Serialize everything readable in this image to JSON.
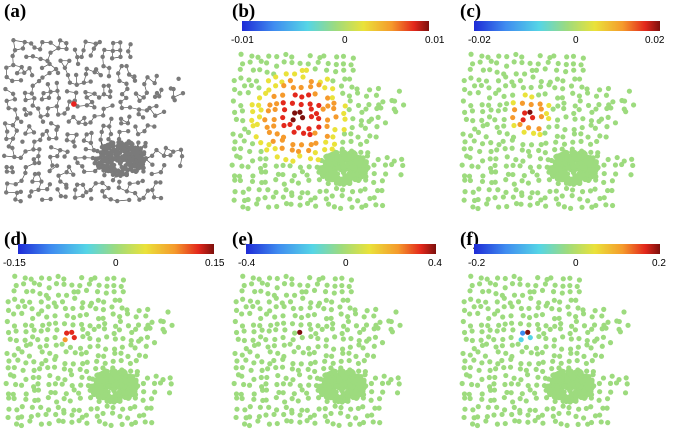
{
  "figure": {
    "panels": [
      {
        "id": "a",
        "label": "(a)",
        "kind": "graph",
        "colorbar": null
      },
      {
        "id": "b",
        "label": "(b)",
        "kind": "heat",
        "colorbar": {
          "ticks": [
            "-0.01",
            "0",
            "0.01"
          ]
        }
      },
      {
        "id": "c",
        "label": "(c)",
        "kind": "heat",
        "colorbar": {
          "ticks": [
            "-0.02",
            "0",
            "0.02"
          ]
        }
      },
      {
        "id": "d",
        "label": "(d)",
        "kind": "heat",
        "colorbar": {
          "ticks": [
            "-0.15",
            "0",
            "0.15"
          ]
        }
      },
      {
        "id": "e",
        "label": "(e)",
        "kind": "heat",
        "colorbar": {
          "ticks": [
            "-0.4",
            "0",
            "0.4"
          ]
        }
      },
      {
        "id": "f",
        "label": "(f)",
        "kind": "heat",
        "colorbar": {
          "ticks": [
            "-0.2",
            "0",
            "0.2"
          ]
        }
      }
    ],
    "colors": {
      "node_gray": "#7a7a7a",
      "edge_gray": "#505050",
      "highlight_node": "#e8211d",
      "baseline_node": "#9ddb7e",
      "colormap": [
        "#1e2bd6",
        "#3f8cf0",
        "#55d5e6",
        "#9ddb7e",
        "#eae23a",
        "#f59a2c",
        "#e3281c",
        "#7d0f0c"
      ]
    }
  }
}
